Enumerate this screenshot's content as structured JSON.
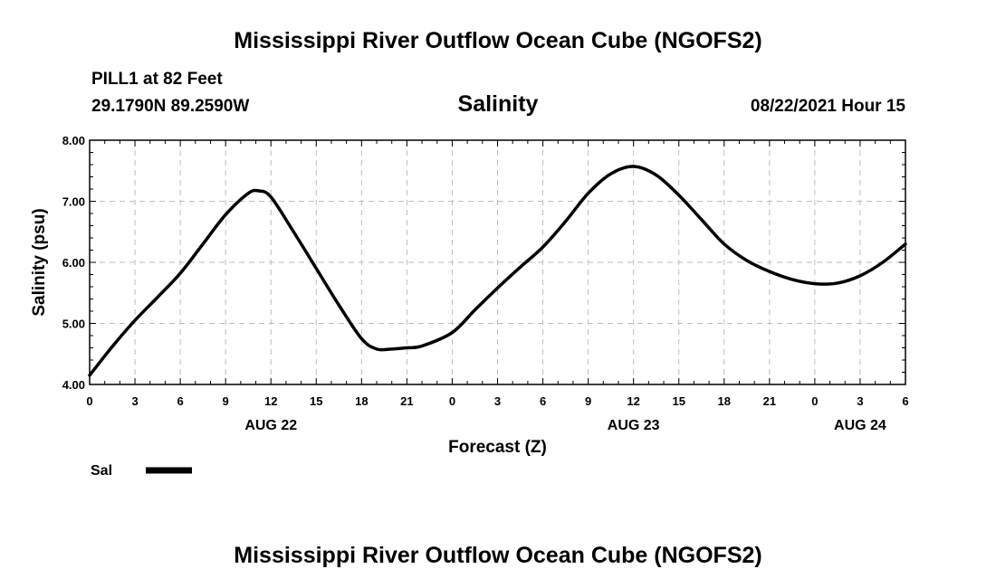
{
  "header": {
    "title": "Mississippi River Outflow Ocean Cube (NGOFS2)",
    "station": "PILL1 at 82 Feet",
    "coordinates": "29.1790N  89.2590W",
    "subtitle": "Salinity",
    "forecast_time": "08/22/2021 Hour 15"
  },
  "footer": {
    "title": "Mississippi River Outflow Ocean Cube (NGOFS2)"
  },
  "chart_data": {
    "type": "line",
    "title": "Salinity",
    "xlabel": "Forecast (Z)",
    "ylabel": "Salinity (psu)",
    "xlim": [
      0,
      54
    ],
    "ylim": [
      4.0,
      8.0
    ],
    "grid": true,
    "x_tick_values": [
      0,
      3,
      6,
      9,
      12,
      15,
      18,
      21,
      24,
      27,
      30,
      33,
      36,
      39,
      42,
      45,
      48,
      51,
      54
    ],
    "x_tick_labels": [
      "0",
      "3",
      "6",
      "9",
      "12",
      "15",
      "18",
      "21",
      "0",
      "3",
      "6",
      "9",
      "12",
      "15",
      "18",
      "21",
      "0",
      "3",
      "6"
    ],
    "x_date_labels": [
      {
        "x": 12,
        "label": "AUG 22"
      },
      {
        "x": 36,
        "label": "AUG 23"
      },
      {
        "x": 51,
        "label": "AUG 24"
      }
    ],
    "y_tick_values": [
      4.0,
      5.0,
      6.0,
      7.0,
      8.0
    ],
    "y_tick_labels": [
      "4.00",
      "5.00",
      "6.00",
      "7.00",
      "8.00"
    ],
    "legend": {
      "position": "bottom-left",
      "entries": [
        {
          "label": "Sal",
          "color": "#000000"
        }
      ]
    },
    "series": [
      {
        "name": "Sal",
        "color": "#000000",
        "x": [
          0,
          1.5,
          3,
          4.5,
          6,
          7.5,
          9,
          10.5,
          11.2,
          12,
          13.5,
          15,
          16.5,
          18,
          19,
          20,
          21,
          22,
          24,
          25.5,
          27,
          28.5,
          30,
          31.5,
          33,
          34.5,
          36,
          37.5,
          39,
          40.5,
          42,
          43.5,
          45,
          46.5,
          48,
          49.5,
          51,
          52.5,
          54
        ],
        "y": [
          4.15,
          4.62,
          5.05,
          5.43,
          5.82,
          6.3,
          6.78,
          7.13,
          7.17,
          7.07,
          6.5,
          5.9,
          5.3,
          4.75,
          4.58,
          4.58,
          4.6,
          4.63,
          4.85,
          5.22,
          5.58,
          5.92,
          6.25,
          6.67,
          7.13,
          7.45,
          7.57,
          7.43,
          7.1,
          6.7,
          6.3,
          6.03,
          5.85,
          5.72,
          5.65,
          5.66,
          5.78,
          6.0,
          6.3
        ]
      }
    ]
  }
}
